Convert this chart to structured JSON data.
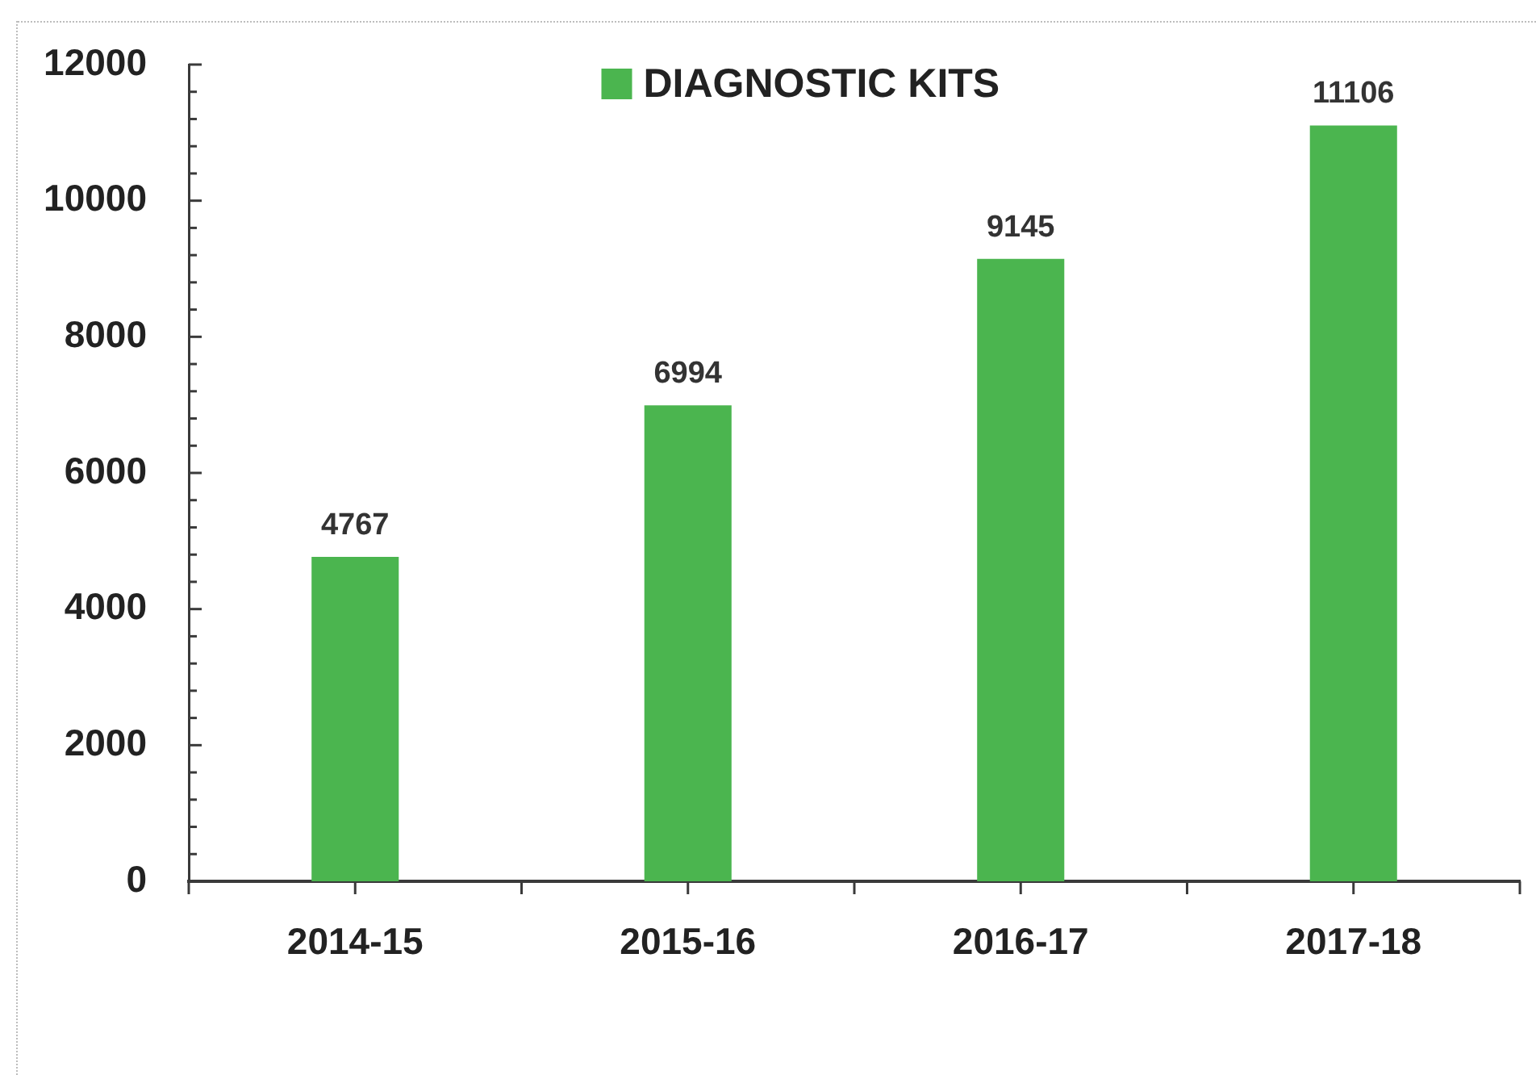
{
  "chart_data": {
    "type": "bar",
    "categories": [
      "2014-15",
      "2015-16",
      "2016-17",
      "2017-18"
    ],
    "series": [
      {
        "name": "DIAGNOSTIC KITS",
        "color": "#4bb54f",
        "values": [
          4767,
          6994,
          9145,
          11106
        ]
      }
    ],
    "ylim": [
      0,
      12000
    ],
    "yticks": [
      0,
      {
        "value": 400,
        "label": null
      },
      {
        "value": 800,
        "label": null
      },
      {
        "value": 1200,
        "label": null
      },
      {
        "value": 1600,
        "label": null
      },
      2000,
      {
        "value": 2400,
        "label": null
      },
      {
        "value": 2800,
        "label": null
      },
      {
        "value": 3200,
        "label": null
      },
      {
        "value": 3600,
        "label": null
      },
      4000,
      {
        "value": 4400,
        "label": null
      },
      {
        "value": 4800,
        "label": null
      },
      {
        "value": 5200,
        "label": null
      },
      {
        "value": 5600,
        "label": null
      },
      6000,
      {
        "value": 6400,
        "label": null
      },
      {
        "value": 6800,
        "label": null
      },
      {
        "value": 7200,
        "label": null
      },
      {
        "value": 7600,
        "label": null
      },
      8000,
      {
        "value": 8400,
        "label": null
      },
      {
        "value": 8800,
        "label": null
      },
      {
        "value": 9200,
        "label": null
      },
      {
        "value": 9600,
        "label": null
      },
      10000,
      {
        "value": 10400,
        "label": null
      },
      {
        "value": 10800,
        "label": null
      },
      {
        "value": 11200,
        "label": null
      },
      {
        "value": 11600,
        "label": null
      },
      12000
    ],
    "grid": false,
    "legend": "top",
    "data_labels": true
  }
}
